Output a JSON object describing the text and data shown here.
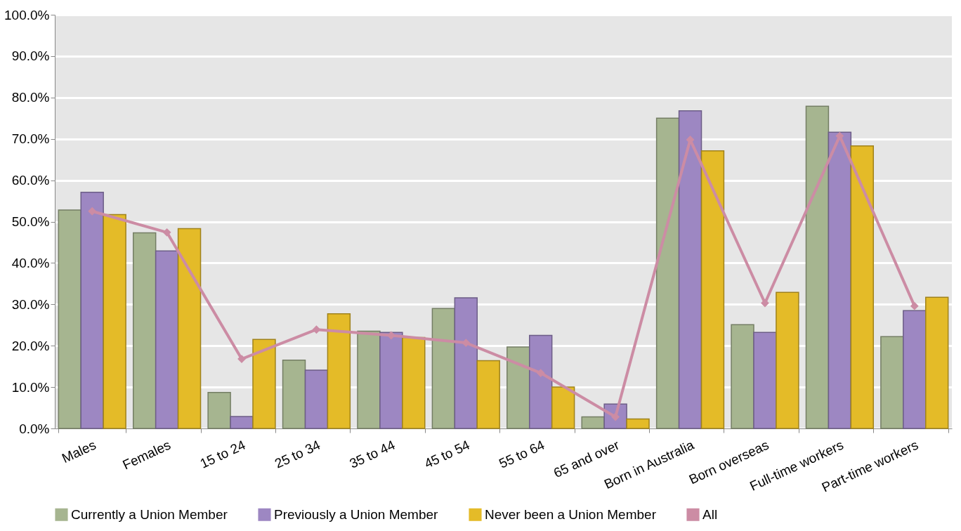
{
  "chart_data": {
    "type": "bar",
    "categories": [
      "Males",
      "Females",
      "15 to 24",
      "25 to 34",
      "35 to 44",
      "45 to 54",
      "55 to 64",
      "65 and over",
      "Born in Australia",
      "Born overseas",
      "Full-time workers",
      "Part-time workers"
    ],
    "series": [
      {
        "name": "Currently a Union Member",
        "color": "#a6b590",
        "values": [
          52.8,
          47.3,
          8.7,
          16.5,
          23.5,
          29.0,
          19.7,
          2.8,
          75.0,
          25.1,
          77.9,
          22.2
        ]
      },
      {
        "name": "Previously a Union Member",
        "color": "#9d87c2",
        "values": [
          57.1,
          42.9,
          2.9,
          14.1,
          23.2,
          31.6,
          22.5,
          5.9,
          76.8,
          23.2,
          71.6,
          28.5
        ]
      },
      {
        "name": "Never been a Union Member",
        "color": "#e4bb28",
        "values": [
          51.7,
          48.3,
          21.5,
          27.7,
          22.0,
          16.4,
          10.0,
          2.3,
          67.1,
          32.9,
          68.3,
          31.7
        ]
      },
      {
        "name": "All",
        "type": "line",
        "color": "#cc8ca4",
        "marker": "diamond",
        "values": [
          52.5,
          47.4,
          16.8,
          23.9,
          22.5,
          20.7,
          13.4,
          2.8,
          69.8,
          30.3,
          70.7,
          29.6
        ]
      }
    ],
    "ylim": [
      0,
      100
    ],
    "yticks": [
      {
        "value": 0,
        "label": "0.0%"
      },
      {
        "value": 10,
        "label": "10.0%"
      },
      {
        "value": 20,
        "label": "20.0%"
      },
      {
        "value": 30,
        "label": "30.0%"
      },
      {
        "value": 40,
        "label": "40.0%"
      },
      {
        "value": 50,
        "label": "50.0%"
      },
      {
        "value": 60,
        "label": "60.0%"
      },
      {
        "value": 70,
        "label": "70.0%"
      },
      {
        "value": 80,
        "label": "80.0%"
      },
      {
        "value": 90,
        "label": "90.0%"
      },
      {
        "value": 100,
        "label": "100.0%"
      }
    ],
    "grid": "y",
    "legend": "bottom"
  }
}
